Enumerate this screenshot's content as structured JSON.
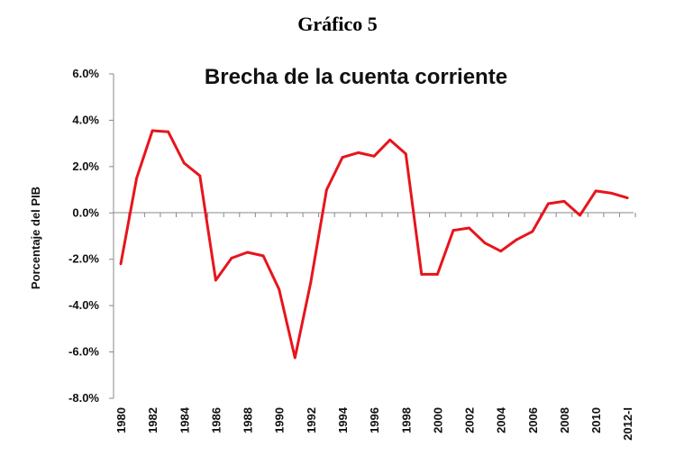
{
  "heading": "Gráfico 5",
  "chart_data": {
    "type": "line",
    "title": "Brecha de la cuenta corriente",
    "xlabel": "",
    "ylabel": "Porcentaje del PIB",
    "ylim": [
      -8.0,
      6.0
    ],
    "y_ticks": [
      "6.0%",
      "4.0%",
      "2.0%",
      "0.0%",
      "-2.0%",
      "-4.0%",
      "-6.0%",
      "-8.0%"
    ],
    "x_tick_labels": [
      "1980",
      "1982",
      "1984",
      "1986",
      "1988",
      "1990",
      "1992",
      "1994",
      "1996",
      "1998",
      "2000",
      "2002",
      "2004",
      "2006",
      "2008",
      "2010",
      "2012-I"
    ],
    "grid": false,
    "legend": "none",
    "line_color": "#e8141c",
    "x": [
      "1980",
      "1981",
      "1982",
      "1983",
      "1984",
      "1985",
      "1986",
      "1987",
      "1988",
      "1989",
      "1990",
      "1991",
      "1992",
      "1993",
      "1994",
      "1995",
      "1996",
      "1997",
      "1998",
      "1999",
      "2000",
      "2001",
      "2002",
      "2003",
      "2004",
      "2005",
      "2006",
      "2007",
      "2008",
      "2009",
      "2010",
      "2011",
      "2012-I"
    ],
    "series": [
      {
        "values": [
          -2.2,
          1.5,
          3.55,
          3.5,
          2.15,
          1.6,
          -2.9,
          -1.95,
          -1.7,
          -1.85,
          -3.3,
          -6.25,
          -3.0,
          1.0,
          2.4,
          2.6,
          2.45,
          3.15,
          2.55,
          -2.65,
          -2.65,
          -0.75,
          -0.65,
          -1.3,
          -1.65,
          -1.15,
          -0.8,
          0.4,
          0.5,
          -0.1,
          0.95,
          0.85,
          0.65
        ]
      }
    ]
  }
}
